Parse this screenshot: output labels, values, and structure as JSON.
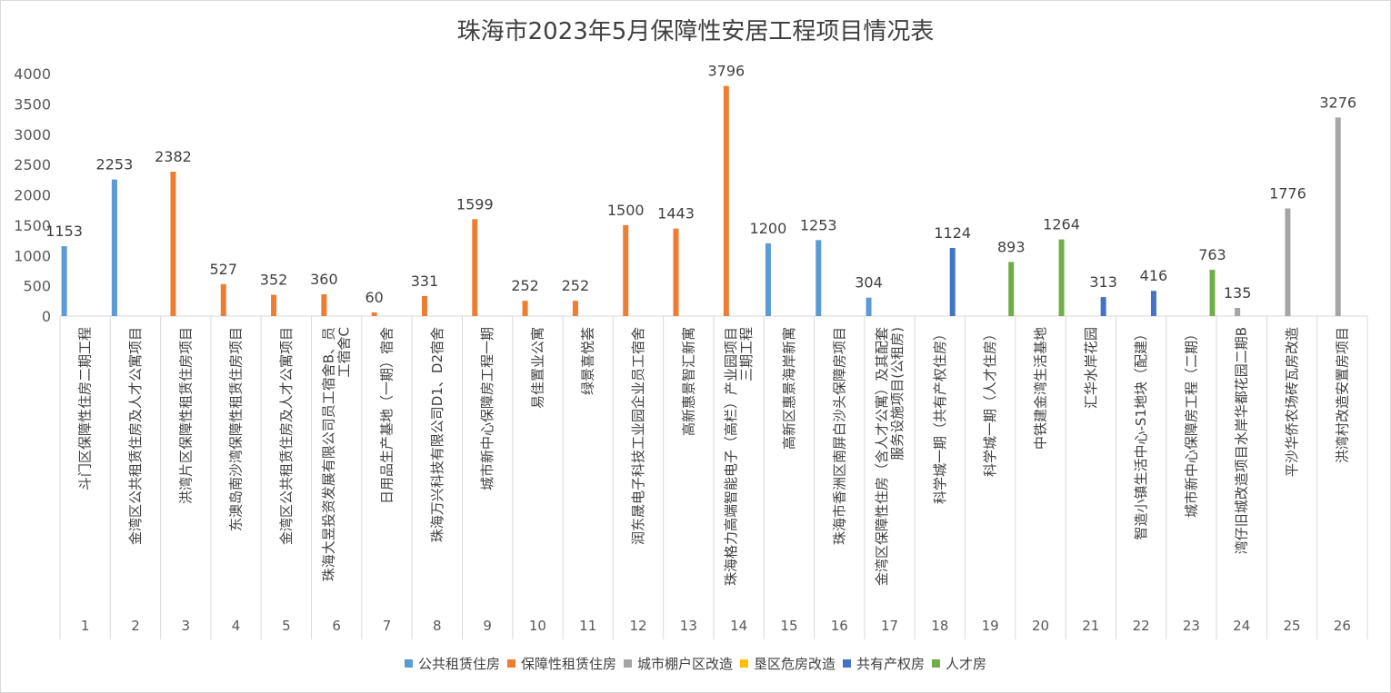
{
  "chart_data": {
    "type": "bar",
    "title": "珠海市2023年5月保障性安居工程项目情况表",
    "ylim": [
      0,
      4000
    ],
    "yticks": [
      0,
      500,
      1000,
      1500,
      2000,
      2500,
      3000,
      3500,
      4000
    ],
    "grid": false,
    "legend_position": "bottom",
    "legend": [
      {
        "name": "公共租赁住房",
        "color": "#5b9bd5"
      },
      {
        "name": "保障性租赁住房",
        "color": "#ed7d31"
      },
      {
        "name": "城市棚户区改造",
        "color": "#a5a5a5"
      },
      {
        "name": "垦区危房改造",
        "color": "#ffc000"
      },
      {
        "name": "共有产权房",
        "color": "#4472c4"
      },
      {
        "name": "人才房",
        "color": "#70ad47"
      }
    ],
    "categories": [
      {
        "num": "1",
        "name": "斗门区保障性住房二期工程"
      },
      {
        "num": "2",
        "name": "金湾区公共租赁住房及人才公寓项目"
      },
      {
        "num": "3",
        "name": "洪湾片区保障性租赁住房项目"
      },
      {
        "num": "4",
        "name": "东澳岛南沙湾保障性租赁住房项目"
      },
      {
        "num": "5",
        "name": "金湾区公共租赁住房及人才公寓项目"
      },
      {
        "num": "6",
        "name": "珠海大昱投资发展有限公司员工宿舍B、员工宿舍C"
      },
      {
        "num": "7",
        "name": "日用品生产基地（一期）宿舍"
      },
      {
        "num": "8",
        "name": "珠海万兴科技有限公司D1、D2宿舍"
      },
      {
        "num": "9",
        "name": "城市新中心保障房工程一期"
      },
      {
        "num": "10",
        "name": "易佳置业公寓"
      },
      {
        "num": "11",
        "name": "绿景喜悦荟"
      },
      {
        "num": "12",
        "name": "润东晟电子科技工业园企业员工宿舍"
      },
      {
        "num": "13",
        "name": "高新惠景智汇新寓"
      },
      {
        "num": "14",
        "name": "珠海格力高端智能电子（高栏）产业园项目三期工程"
      },
      {
        "num": "15",
        "name": "高新区惠景海岸新寓"
      },
      {
        "num": "16",
        "name": "珠海市香洲区南屏白沙头保障房项目"
      },
      {
        "num": "17",
        "name": "金湾区保障性住房（含人才公寓）及其配套服务设施项目(公租房)"
      },
      {
        "num": "18",
        "name": "科学城一期（共有产权住房）"
      },
      {
        "num": "19",
        "name": "科学城一期（人才住房）"
      },
      {
        "num": "20",
        "name": "中铁建金湾生活基地"
      },
      {
        "num": "21",
        "name": "汇华水岸花园"
      },
      {
        "num": "22",
        "name": "智造小镇生活中心-S1地块（配建）"
      },
      {
        "num": "23",
        "name": "城市新中心保障房工程（二期）"
      },
      {
        "num": "24",
        "name": "湾仔旧城改造项目水岸华都花园二期B"
      },
      {
        "num": "25",
        "name": "平沙华侨农场砖瓦房改造"
      },
      {
        "num": "26",
        "name": "洪湾村改造安置房项目"
      }
    ],
    "series": [
      {
        "name": "公共租赁住房",
        "color": "#5b9bd5",
        "values": [
          1153,
          2253,
          null,
          null,
          null,
          null,
          null,
          null,
          null,
          null,
          null,
          null,
          null,
          null,
          1200,
          1253,
          304,
          null,
          null,
          null,
          null,
          null,
          null,
          null,
          null,
          null
        ]
      },
      {
        "name": "保障性租赁住房",
        "color": "#ed7d31",
        "values": [
          null,
          null,
          2382,
          527,
          352,
          360,
          60,
          331,
          1599,
          252,
          252,
          1500,
          1443,
          3796,
          null,
          null,
          null,
          null,
          null,
          null,
          null,
          null,
          null,
          null,
          null,
          null
        ]
      },
      {
        "name": "城市棚户区改造",
        "color": "#a5a5a5",
        "values": [
          null,
          null,
          null,
          null,
          null,
          null,
          null,
          null,
          null,
          null,
          null,
          null,
          null,
          null,
          null,
          null,
          null,
          null,
          null,
          null,
          null,
          null,
          null,
          135,
          1776,
          3276
        ]
      },
      {
        "name": "垦区危房改造",
        "color": "#ffc000",
        "values": [
          null,
          null,
          null,
          null,
          null,
          null,
          null,
          null,
          null,
          null,
          null,
          null,
          null,
          null,
          null,
          null,
          null,
          null,
          null,
          null,
          null,
          null,
          null,
          null,
          null,
          null
        ]
      },
      {
        "name": "共有产权房",
        "color": "#4472c4",
        "values": [
          null,
          null,
          null,
          null,
          null,
          null,
          null,
          null,
          null,
          null,
          null,
          null,
          null,
          null,
          null,
          null,
          null,
          1124,
          null,
          null,
          313,
          416,
          null,
          null,
          null,
          null
        ]
      },
      {
        "name": "人才房",
        "color": "#70ad47",
        "values": [
          null,
          null,
          null,
          null,
          null,
          null,
          null,
          null,
          null,
          null,
          null,
          null,
          null,
          null,
          null,
          null,
          null,
          null,
          893,
          1264,
          null,
          null,
          763,
          null,
          null,
          null
        ]
      }
    ]
  }
}
